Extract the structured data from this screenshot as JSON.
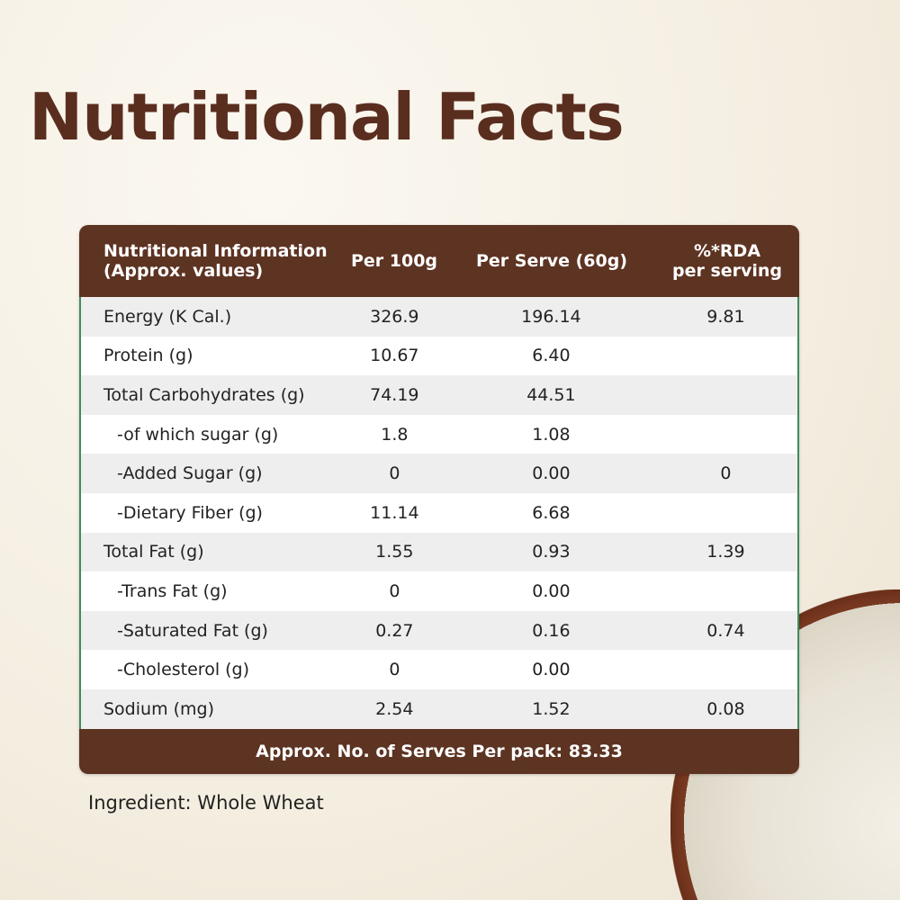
{
  "title": "Nutritional Facts",
  "table": {
    "headers": [
      "Nutritional Information\n(Approx. values)",
      "Per 100g",
      "Per Serve (60g)",
      "%*RDA\nper serving"
    ],
    "header_lines": {
      "h0a": "Nutritional Information",
      "h0b": "(Approx. values)",
      "h3a": "%*RDA",
      "h3b": "per serving"
    },
    "rows": [
      {
        "name": "Energy (K Cal.)",
        "per100": "326.9",
        "serve": "196.14",
        "rda": "9.81",
        "sub": false
      },
      {
        "name": "Protein (g)",
        "per100": "10.67",
        "serve": "6.40",
        "rda": "",
        "sub": false
      },
      {
        "name": "Total Carbohydrates (g)",
        "per100": "74.19",
        "serve": "44.51",
        "rda": "",
        "sub": false
      },
      {
        "name": "-of which sugar (g)",
        "per100": "1.8",
        "serve": "1.08",
        "rda": "",
        "sub": true
      },
      {
        "name": "-Added Sugar (g)",
        "per100": "0",
        "serve": "0.00",
        "rda": "0",
        "sub": true
      },
      {
        "name": "-Dietary Fiber (g)",
        "per100": "11.14",
        "serve": "6.68",
        "rda": "",
        "sub": true
      },
      {
        "name": "Total Fat (g)",
        "per100": "1.55",
        "serve": "0.93",
        "rda": "1.39",
        "sub": false
      },
      {
        "name": "-Trans Fat (g)",
        "per100": "0",
        "serve": "0.00",
        "rda": "",
        "sub": true
      },
      {
        "name": "-Saturated Fat (g)",
        "per100": "0.27",
        "serve": "0.16",
        "rda": "0.74",
        "sub": true
      },
      {
        "name": "-Cholesterol (g)",
        "per100": "0",
        "serve": "0.00",
        "rda": "",
        "sub": true
      },
      {
        "name": "Sodium (mg)",
        "per100": "2.54",
        "serve": "1.52",
        "rda": "0.08",
        "sub": false
      }
    ],
    "footer": "Approx. No. of Serves Per pack: 83.33"
  },
  "ingredient": "Ingredient: Whole Wheat",
  "colors": {
    "brown": "#5d3322",
    "title": "#5a2e1f",
    "border": "#3f8c5e"
  }
}
